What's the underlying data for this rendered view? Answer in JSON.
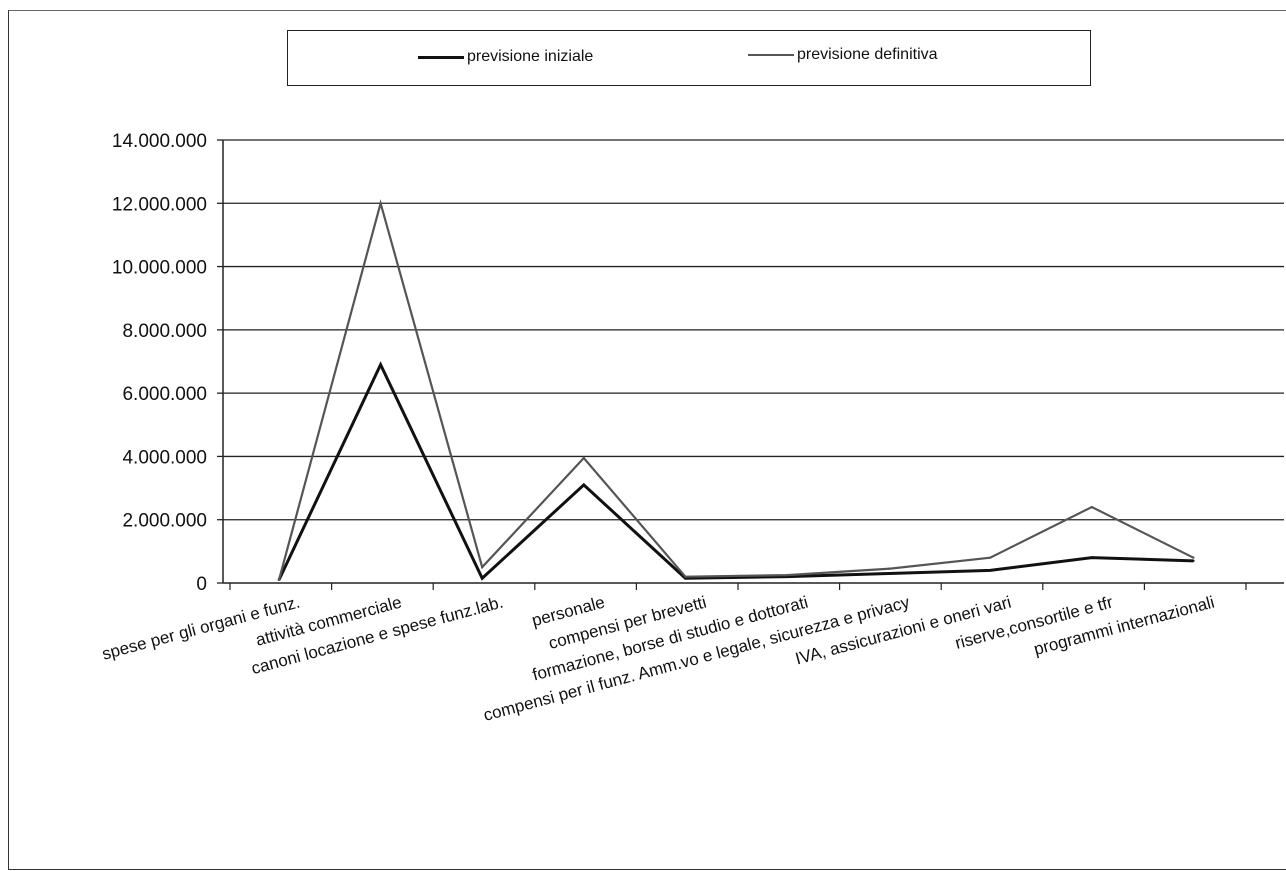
{
  "chart_data": {
    "type": "line",
    "categories": [
      "spese per gli organi e funz.",
      "attività commerciale",
      "canoni locazione e spese funz.lab.",
      "personale",
      "compensi per brevetti",
      "formazione, borse di studio e dottorati",
      "compensi per il funz. Amm.vo e legale, sicurezza e privacy",
      "IVA, assicurazioni e oneri vari",
      "riserve,consortile e tfr",
      "programmi internazionali"
    ],
    "series": [
      {
        "name": "previsione iniziale",
        "color": "#111111",
        "values": [
          100000,
          6900000,
          150000,
          3100000,
          150000,
          200000,
          300000,
          400000,
          800000,
          700000
        ]
      },
      {
        "name": "previsione definitiva",
        "color": "#555555",
        "values": [
          100000,
          12000000,
          500000,
          3950000,
          200000,
          250000,
          450000,
          800000,
          2400000,
          800000
        ]
      }
    ],
    "y_ticks": [
      "0",
      "2.000.000",
      "4.000.000",
      "6.000.000",
      "8.000.000",
      "10.000.000",
      "12.000.000",
      "14.000.000"
    ],
    "ylim": [
      0,
      14000000
    ],
    "grid": true,
    "legend_position": "top"
  },
  "legend": {
    "items": [
      {
        "label": "previsione iniziale",
        "color": "#111111"
      },
      {
        "label": "previsione definitiva",
        "color": "#555555"
      }
    ]
  }
}
